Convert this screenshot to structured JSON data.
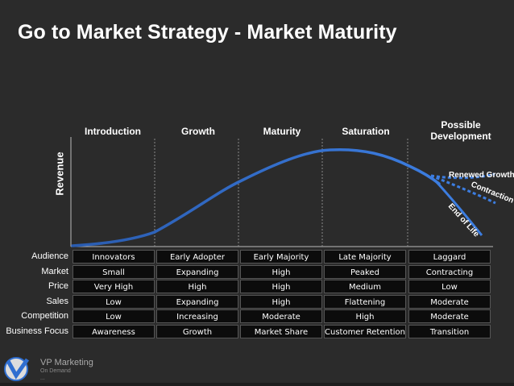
{
  "title": "Go to Market Strategy - Market Maturity",
  "y_axis_label": "Revenue",
  "stages": [
    "Introduction",
    "Growth",
    "Maturity",
    "Saturation",
    "Possible Development"
  ],
  "curve_labels": {
    "renewed": "Renewed Growth",
    "contraction": "Contraction",
    "end_of_life": "End of Life"
  },
  "table": {
    "row_labels": [
      "Audience",
      "Market",
      "Price",
      "Sales",
      "Competition",
      "Business Focus"
    ],
    "rows": [
      [
        "Innovators",
        "Early Adopter",
        "Early Majority",
        "Late Majority",
        "Laggard"
      ],
      [
        "Small",
        "Expanding",
        "High",
        "Peaked",
        "Contracting"
      ],
      [
        "Very High",
        "High",
        "High",
        "Medium",
        "Low"
      ],
      [
        "Low",
        "Expanding",
        "High",
        "Flattening",
        "Moderate"
      ],
      [
        "Low",
        "Increasing",
        "Moderate",
        "High",
        "Moderate"
      ],
      [
        "Awareness",
        "Growth",
        "Market Share",
        "Customer Retention",
        "Transition"
      ]
    ]
  },
  "logo": {
    "name": "VP Marketing",
    "sub_line_1": "On Demand",
    "sub_line_2": "..."
  },
  "colors": {
    "background": "#2b2b2b",
    "curve_blue": "#2f6ed0",
    "cell_background": "#0c0c0c"
  }
}
